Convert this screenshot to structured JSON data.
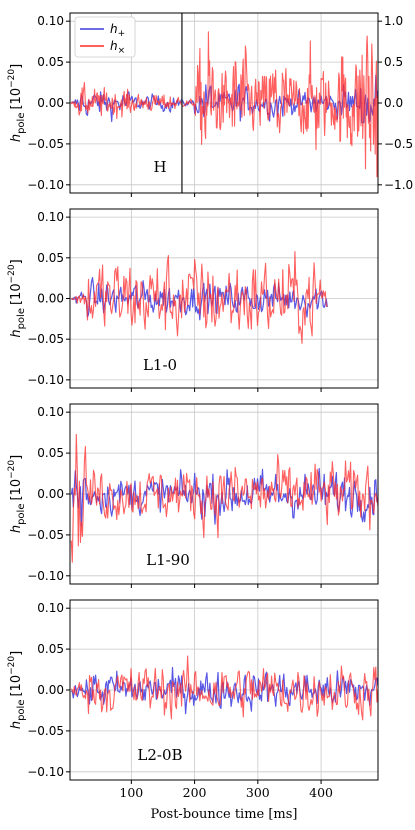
{
  "chart_data": [
    {
      "type": "line",
      "label": "H",
      "xlim": [
        3,
        490
      ],
      "ylim": [
        -0.11,
        0.11
      ],
      "yticks": [
        "0.10",
        "0.05",
        "0.00",
        "−0.05",
        "−0.10"
      ],
      "ylabel": "h_pole [10^-20]",
      "right_axis": {
        "ylim": [
          -1.1,
          1.1
        ],
        "ticks": [
          "1.0",
          "0.5",
          "0.0",
          "−0.5",
          "−1.0"
        ]
      },
      "vline_x": 180,
      "legend": {
        "placement": "top-left",
        "entries": [
          "h_+",
          "h_×"
        ]
      },
      "series": [
        {
          "name": "h_+",
          "color": "#3b3bdf"
        },
        {
          "name": "h_×",
          "color": "#ff2a2a"
        }
      ]
    },
    {
      "type": "line",
      "label": "L1-0",
      "xlim": [
        3,
        490
      ],
      "ylim": [
        -0.11,
        0.11
      ],
      "yticks": [
        "0.10",
        "0.05",
        "0.00",
        "−0.05",
        "−0.10"
      ],
      "ylabel": "h_pole [10^-20]",
      "data_end_x": 410,
      "series": [
        {
          "name": "h_+",
          "color": "#3b3bdf"
        },
        {
          "name": "h_×",
          "color": "#ff2a2a"
        }
      ]
    },
    {
      "type": "line",
      "label": "L1-90",
      "xlim": [
        3,
        490
      ],
      "ylim": [
        -0.11,
        0.11
      ],
      "yticks": [
        "0.10",
        "0.05",
        "0.00",
        "−0.05",
        "−0.10"
      ],
      "ylabel": "h_pole [10^-20]",
      "data_end_x": 490,
      "series": [
        {
          "name": "h_+",
          "color": "#3b3bdf"
        },
        {
          "name": "h_×",
          "color": "#ff2a2a"
        }
      ]
    },
    {
      "type": "line",
      "label": "L2-0B",
      "xlim": [
        3,
        490
      ],
      "ylim": [
        -0.11,
        0.11
      ],
      "yticks": [
        "0.10",
        "0.05",
        "0.00",
        "−0.05",
        "−0.10"
      ],
      "ylabel": "h_pole [10^-20]",
      "data_end_x": 490,
      "series": [
        {
          "name": "h_+",
          "color": "#3b3bdf"
        },
        {
          "name": "h_×",
          "color": "#ff2a2a"
        }
      ]
    }
  ],
  "shared": {
    "xticks": [
      "100",
      "200",
      "300",
      "400"
    ],
    "xlabel": "Post-bounce time [ms]",
    "ylabel_main": "h",
    "ylabel_sub": "pole",
    "ylabel_unit": "[10",
    "ylabel_exp": "−20",
    "ylabel_close": "]",
    "legend_plus_sub": "+",
    "legend_cross_sub": "×",
    "legend_h": "h"
  }
}
